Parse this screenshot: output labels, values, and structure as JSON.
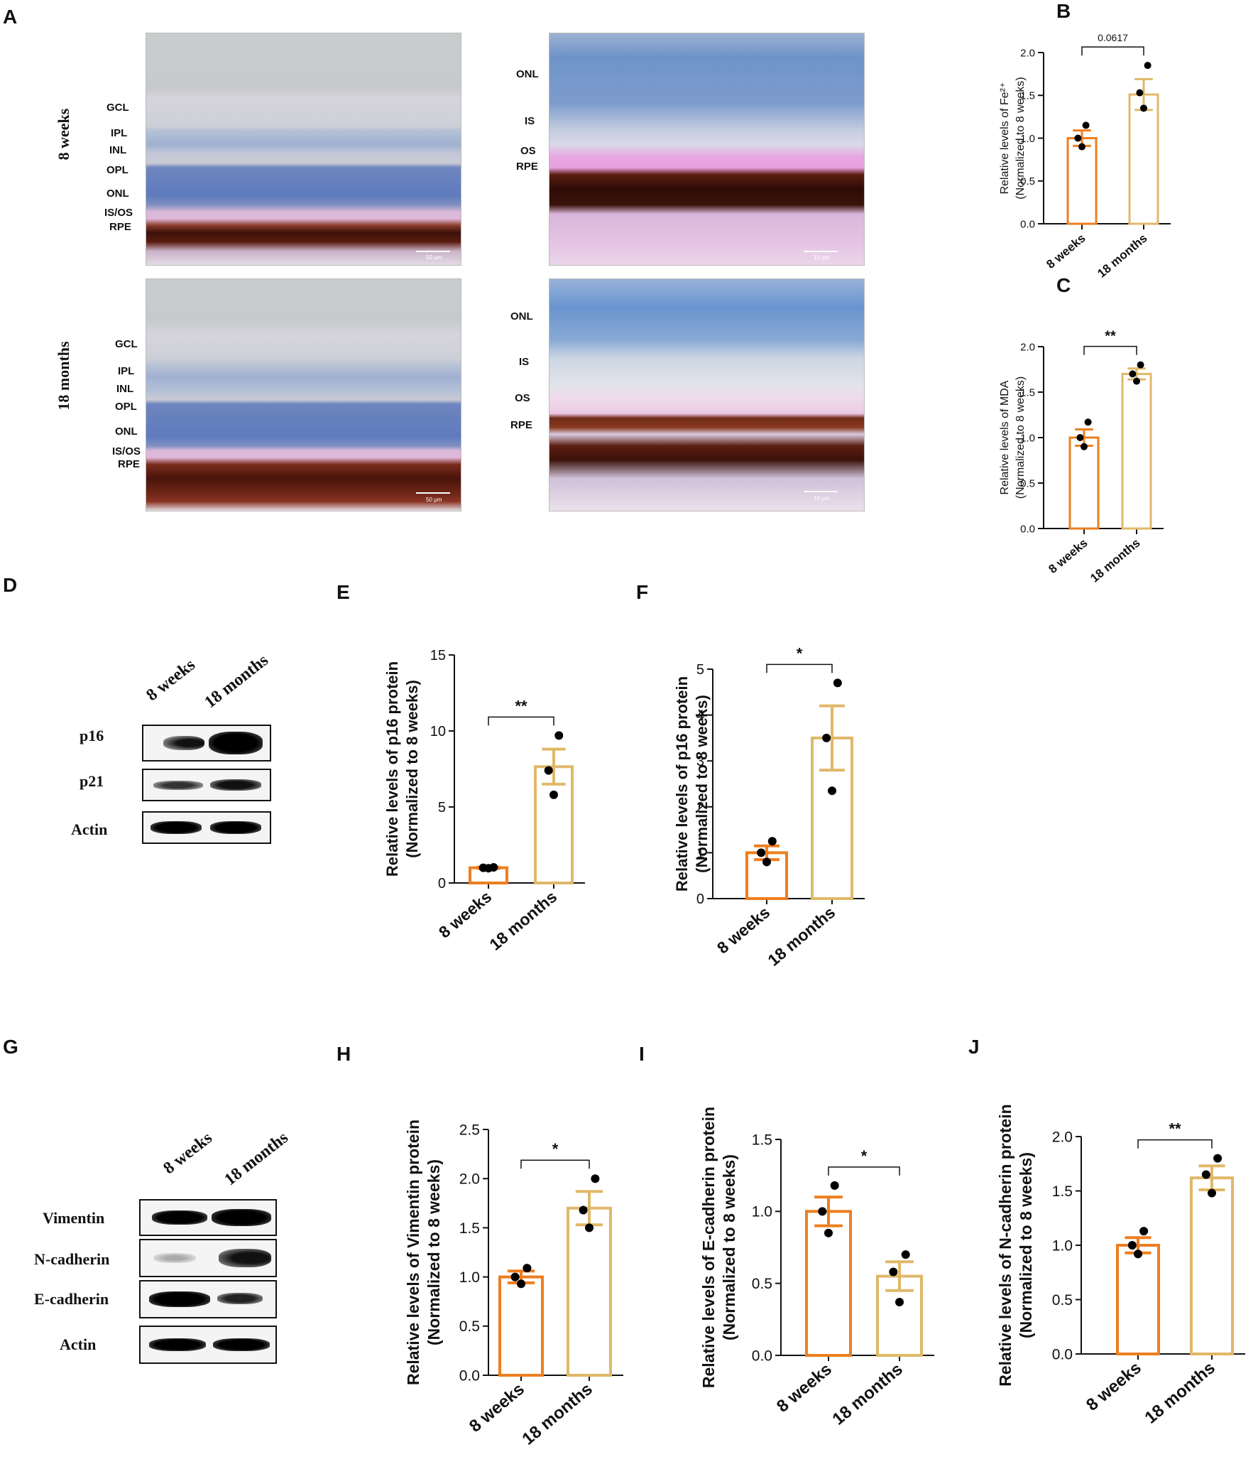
{
  "colors": {
    "weeks": "#EE7E1E",
    "months": "#E0B868",
    "dot": "#000000"
  },
  "panels": {
    "A": "A",
    "B": "B",
    "C": "C",
    "D": "D",
    "E": "E",
    "F": "F",
    "G": "G",
    "H": "H",
    "I": "I",
    "J": "J"
  },
  "histology": {
    "row_labels": [
      "8 weeks",
      "18 months"
    ],
    "left_layers": [
      "GCL",
      "IPL",
      "INL",
      "OPL",
      "ONL",
      "IS/OS",
      "RPE"
    ],
    "right_layers": [
      "ONL",
      "IS",
      "OS",
      "RPE"
    ],
    "scale_left": "50 μm",
    "scale_right": "10 μm"
  },
  "blot_D": {
    "columns": [
      "8 weeks",
      "18 months"
    ],
    "rows": [
      "p16",
      "p21",
      "Actin"
    ]
  },
  "blot_G": {
    "columns": [
      "8 weeks",
      "18 months"
    ],
    "rows": [
      "Vimentin",
      "N-cadherin",
      "E-cadherin",
      "Actin"
    ]
  },
  "chart_data": [
    {
      "panel": "B",
      "type": "bar",
      "categories": [
        "8 weeks",
        "18 months"
      ],
      "values": [
        1.0,
        1.51
      ],
      "errors": [
        0.09,
        0.18
      ],
      "points": [
        [
          0.9,
          1.0,
          1.15
        ],
        [
          1.35,
          1.53,
          1.85
        ]
      ],
      "significance": "0.0617",
      "ylabel": [
        "Relative levels of Fe²⁺",
        "(Normalized to 8 weeks)"
      ],
      "ylim": [
        0,
        2.0
      ],
      "ticks": [
        "0.0",
        "0.5",
        "1.0",
        "1.5",
        "2.0"
      ]
    },
    {
      "panel": "C",
      "type": "bar",
      "categories": [
        "8 weeks",
        "18 months"
      ],
      "values": [
        1.0,
        1.7
      ],
      "errors": [
        0.09,
        0.06
      ],
      "points": [
        [
          0.9,
          1.0,
          1.17
        ],
        [
          1.62,
          1.7,
          1.8
        ]
      ],
      "significance": "**",
      "ylabel": [
        "Relative levels of MDA",
        "(Normalized to 8 weeks)"
      ],
      "ylim": [
        0,
        2.0
      ],
      "ticks": [
        "0.0",
        "0.5",
        "1.0",
        "1.5",
        "2.0"
      ]
    },
    {
      "panel": "E",
      "type": "bar",
      "categories": [
        "8 weeks",
        "18 months"
      ],
      "values": [
        1.0,
        7.65
      ],
      "errors": [
        0.04,
        1.15
      ],
      "points": [
        [
          0.97,
          1.0,
          1.03
        ],
        [
          5.8,
          7.4,
          9.7
        ]
      ],
      "significance": "**",
      "ylabel": [
        "Relative levels of p16 protein",
        "(Normalized to 8 weeks)"
      ],
      "ylim": [
        0,
        15
      ],
      "ticks": [
        "0",
        "5",
        "10",
        "15"
      ]
    },
    {
      "panel": "F",
      "type": "bar",
      "categories": [
        "8 weeks",
        "18 months"
      ],
      "values": [
        1.0,
        3.5
      ],
      "errors": [
        0.15,
        0.7
      ],
      "points": [
        [
          0.8,
          1.0,
          1.25
        ],
        [
          2.35,
          3.5,
          4.7
        ]
      ],
      "significance": "*",
      "ylabel": [
        "Relative levels of p16 protein",
        "(Normalized to 8 weeks)"
      ],
      "ylim": [
        0,
        5
      ],
      "ticks": [
        "0",
        "1",
        "2",
        "3",
        "4",
        "5"
      ]
    },
    {
      "panel": "H",
      "type": "bar",
      "categories": [
        "8 weeks",
        "18 months"
      ],
      "values": [
        1.0,
        1.7
      ],
      "errors": [
        0.06,
        0.17
      ],
      "points": [
        [
          0.93,
          1.0,
          1.09
        ],
        [
          1.5,
          1.68,
          2.0
        ]
      ],
      "significance": "*",
      "ylabel": [
        "Relative levels of Vimentin protein",
        "(Normalized to 8 weeks)"
      ],
      "ylim": [
        0,
        2.5
      ],
      "ticks": [
        "0.0",
        "0.5",
        "1.0",
        "1.5",
        "2.0",
        "2.5"
      ]
    },
    {
      "panel": "I",
      "type": "bar",
      "categories": [
        "8 weeks",
        "18 months"
      ],
      "values": [
        1.0,
        0.55
      ],
      "errors": [
        0.1,
        0.1
      ],
      "points": [
        [
          0.85,
          1.0,
          1.18
        ],
        [
          0.37,
          0.58,
          0.7
        ]
      ],
      "significance": "*",
      "ylabel": [
        "Relative levels of E-cadherin protein",
        "(Normalized to 8 weeks)"
      ],
      "ylim": [
        0,
        1.5
      ],
      "ticks": [
        "0.0",
        "0.5",
        "1.0",
        "1.5"
      ]
    },
    {
      "panel": "J",
      "type": "bar",
      "categories": [
        "8 weeks",
        "18 months"
      ],
      "values": [
        1.0,
        1.62
      ],
      "errors": [
        0.07,
        0.11
      ],
      "points": [
        [
          0.92,
          1.0,
          1.13
        ],
        [
          1.48,
          1.65,
          1.8
        ]
      ],
      "significance": "**",
      "ylabel": [
        "Relative levels of N-cadherin protein",
        "(Normalized to 8 weeks)"
      ],
      "ylim": [
        0,
        2.0
      ],
      "ticks": [
        "0.0",
        "0.5",
        "1.0",
        "1.5",
        "2.0"
      ]
    }
  ]
}
